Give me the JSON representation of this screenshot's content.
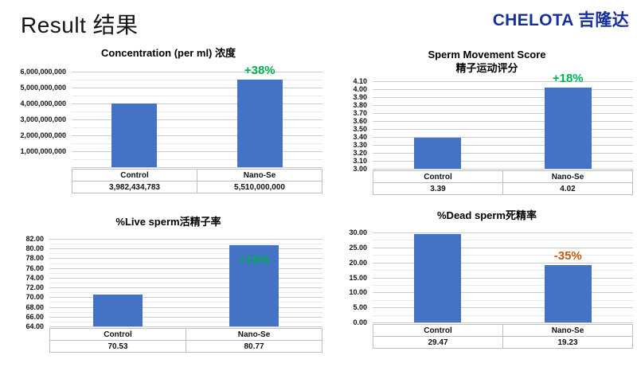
{
  "header": {
    "title": "Result 结果",
    "logo": "CHELOTA 吉隆达"
  },
  "colors": {
    "bar": "#4472C4",
    "positive": "#00B050",
    "negative": "#C55A11",
    "logo": "#18309D"
  },
  "chart_data": [
    {
      "id": "concentration",
      "type": "bar",
      "title": "Concentration (per ml)  浓度",
      "categories": [
        "Control",
        "Nano-Se"
      ],
      "values": [
        3982434783,
        5510000000
      ],
      "value_labels": [
        "3,982,434,783",
        "5,510,000,000"
      ],
      "ymin": 0,
      "ymax": 6000000000,
      "grid": true,
      "minor_gridlines": true,
      "legend_position": "bottom-table",
      "yticks": [
        {
          "value": 6000000000,
          "label": "6,000,000,000"
        },
        {
          "value": 5000000000,
          "label": "5,000,000,000"
        },
        {
          "value": 4000000000,
          "label": "4,000,000,000"
        },
        {
          "value": 3000000000,
          "label": "3,000,000,000"
        },
        {
          "value": 2000000000,
          "label": "2,000,000,000"
        },
        {
          "value": 1000000000,
          "label": "1,000,000,000"
        }
      ],
      "change": {
        "text": "+38%",
        "sentiment": "positive",
        "bar_index": 1,
        "placement": "above"
      }
    },
    {
      "id": "sperm-movement-score",
      "type": "bar",
      "title": "Sperm Movement Score",
      "subtitle": "精子运动评分",
      "categories": [
        "Control",
        "Nano-Se"
      ],
      "values": [
        3.39,
        4.02
      ],
      "value_labels": [
        "3.39",
        "4.02"
      ],
      "ymin": 3.0,
      "ymax": 4.1,
      "grid": true,
      "minor_gridlines": false,
      "legend_position": "bottom-table",
      "yticks": [
        {
          "value": 4.1,
          "label": "4.10"
        },
        {
          "value": 4.0,
          "label": "4.00"
        },
        {
          "value": 3.9,
          "label": "3.90"
        },
        {
          "value": 3.8,
          "label": "3.80"
        },
        {
          "value": 3.7,
          "label": "3.70"
        },
        {
          "value": 3.6,
          "label": "3.60"
        },
        {
          "value": 3.5,
          "label": "3.50"
        },
        {
          "value": 3.4,
          "label": "3.40"
        },
        {
          "value": 3.3,
          "label": "3.30"
        },
        {
          "value": 3.2,
          "label": "3.20"
        },
        {
          "value": 3.1,
          "label": "3.10"
        },
        {
          "value": 3.0,
          "label": "3.00"
        }
      ],
      "change": {
        "text": "+18%",
        "sentiment": "positive",
        "bar_index": 1,
        "placement": "above"
      }
    },
    {
      "id": "live-sperm",
      "type": "bar",
      "title": "%Live sperm活精子率",
      "categories": [
        "Control",
        "Nano-Se"
      ],
      "values": [
        70.53,
        80.77
      ],
      "value_labels": [
        "70.53",
        "80.77"
      ],
      "ymin": 64,
      "ymax": 82,
      "grid": true,
      "minor_gridlines": true,
      "legend_position": "bottom-table",
      "yticks": [
        {
          "value": 82,
          "label": "82.00"
        },
        {
          "value": 80,
          "label": "80.00"
        },
        {
          "value": 78,
          "label": "78.00"
        },
        {
          "value": 76,
          "label": "76.00"
        },
        {
          "value": 74,
          "label": "74.00"
        },
        {
          "value": 72,
          "label": "72.00"
        },
        {
          "value": 70,
          "label": "70.00"
        },
        {
          "value": 68,
          "label": "68.00"
        },
        {
          "value": 66,
          "label": "66.00"
        },
        {
          "value": 64,
          "label": "64.00"
        }
      ],
      "change": {
        "text": "+15%",
        "sentiment": "positive",
        "bar_index": 1,
        "placement": "inside"
      }
    },
    {
      "id": "dead-sperm",
      "type": "bar",
      "title": "%Dead sperm死精率",
      "categories": [
        "Control",
        "Nano-Se"
      ],
      "values": [
        29.47,
        19.23
      ],
      "value_labels": [
        "29.47",
        "19.23"
      ],
      "ymin": 0,
      "ymax": 30,
      "grid": true,
      "minor_gridlines": true,
      "legend_position": "bottom-table",
      "yticks": [
        {
          "value": 30,
          "label": "30.00"
        },
        {
          "value": 25,
          "label": "25.00"
        },
        {
          "value": 20,
          "label": "20.00"
        },
        {
          "value": 15,
          "label": "15.00"
        },
        {
          "value": 10,
          "label": "10.00"
        },
        {
          "value": 5,
          "label": "5.00"
        },
        {
          "value": 0,
          "label": "0.00"
        }
      ],
      "change": {
        "text": "-35%",
        "sentiment": "negative",
        "bar_index": 1,
        "placement": "above"
      }
    }
  ]
}
